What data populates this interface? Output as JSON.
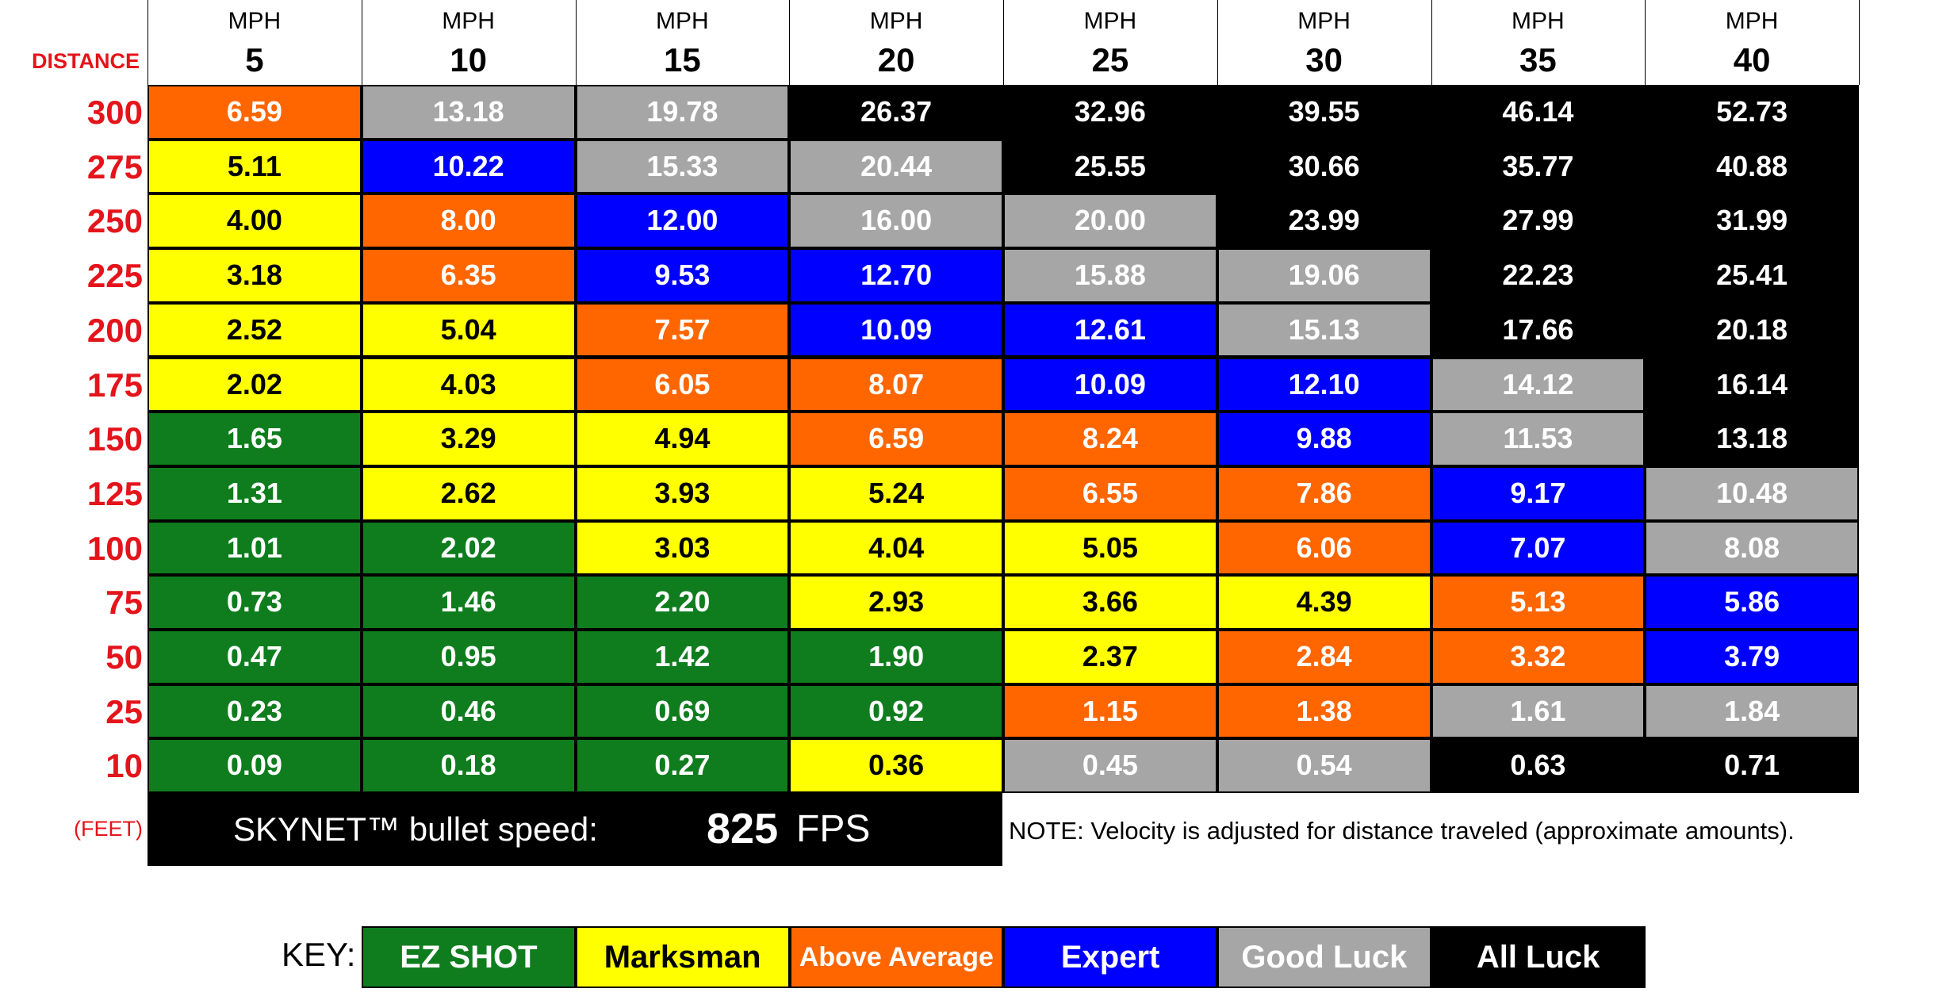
{
  "header": {
    "distance_label": "DISTANCE",
    "columns": [
      {
        "unit": "MPH",
        "value": "5"
      },
      {
        "unit": "MPH",
        "value": "10"
      },
      {
        "unit": "MPH",
        "value": "15"
      },
      {
        "unit": "MPH",
        "value": "20"
      },
      {
        "unit": "MPH",
        "value": "25"
      },
      {
        "unit": "MPH",
        "value": "30"
      },
      {
        "unit": "MPH",
        "value": "35"
      },
      {
        "unit": "MPH",
        "value": "40"
      }
    ]
  },
  "colors": {
    "green": "#0f7d1e",
    "yellow": "#ffff00",
    "orange": "#ff6600",
    "blue": "#0000ff",
    "gray": "#a6a6a6",
    "black": "#000000",
    "label_red": "#e4141b"
  },
  "rows": [
    {
      "distance": "300",
      "cells": [
        {
          "v": "6.59",
          "c": "orange"
        },
        {
          "v": "13.18",
          "c": "gray"
        },
        {
          "v": "19.78",
          "c": "gray"
        },
        {
          "v": "26.37",
          "c": "black"
        },
        {
          "v": "32.96",
          "c": "black"
        },
        {
          "v": "39.55",
          "c": "black"
        },
        {
          "v": "46.14",
          "c": "black"
        },
        {
          "v": "52.73",
          "c": "black"
        }
      ]
    },
    {
      "distance": "275",
      "cells": [
        {
          "v": "5.11",
          "c": "yellow"
        },
        {
          "v": "10.22",
          "c": "blue"
        },
        {
          "v": "15.33",
          "c": "gray"
        },
        {
          "v": "20.44",
          "c": "gray"
        },
        {
          "v": "25.55",
          "c": "black"
        },
        {
          "v": "30.66",
          "c": "black"
        },
        {
          "v": "35.77",
          "c": "black"
        },
        {
          "v": "40.88",
          "c": "black"
        }
      ]
    },
    {
      "distance": "250",
      "cells": [
        {
          "v": "4.00",
          "c": "yellow"
        },
        {
          "v": "8.00",
          "c": "orange"
        },
        {
          "v": "12.00",
          "c": "blue"
        },
        {
          "v": "16.00",
          "c": "gray"
        },
        {
          "v": "20.00",
          "c": "gray"
        },
        {
          "v": "23.99",
          "c": "black"
        },
        {
          "v": "27.99",
          "c": "black"
        },
        {
          "v": "31.99",
          "c": "black"
        }
      ]
    },
    {
      "distance": "225",
      "cells": [
        {
          "v": "3.18",
          "c": "yellow"
        },
        {
          "v": "6.35",
          "c": "orange"
        },
        {
          "v": "9.53",
          "c": "blue"
        },
        {
          "v": "12.70",
          "c": "blue"
        },
        {
          "v": "15.88",
          "c": "gray"
        },
        {
          "v": "19.06",
          "c": "gray"
        },
        {
          "v": "22.23",
          "c": "black"
        },
        {
          "v": "25.41",
          "c": "black"
        }
      ]
    },
    {
      "distance": "200",
      "cells": [
        {
          "v": "2.52",
          "c": "yellow"
        },
        {
          "v": "5.04",
          "c": "yellow"
        },
        {
          "v": "7.57",
          "c": "orange"
        },
        {
          "v": "10.09",
          "c": "blue"
        },
        {
          "v": "12.61",
          "c": "blue"
        },
        {
          "v": "15.13",
          "c": "gray"
        },
        {
          "v": "17.66",
          "c": "black"
        },
        {
          "v": "20.18",
          "c": "black"
        }
      ]
    },
    {
      "distance": "175",
      "cells": [
        {
          "v": "2.02",
          "c": "yellow"
        },
        {
          "v": "4.03",
          "c": "yellow"
        },
        {
          "v": "6.05",
          "c": "orange"
        },
        {
          "v": "8.07",
          "c": "orange"
        },
        {
          "v": "10.09",
          "c": "blue"
        },
        {
          "v": "12.10",
          "c": "blue"
        },
        {
          "v": "14.12",
          "c": "gray"
        },
        {
          "v": "16.14",
          "c": "black"
        }
      ]
    },
    {
      "distance": "150",
      "cells": [
        {
          "v": "1.65",
          "c": "green"
        },
        {
          "v": "3.29",
          "c": "yellow"
        },
        {
          "v": "4.94",
          "c": "yellow"
        },
        {
          "v": "6.59",
          "c": "orange"
        },
        {
          "v": "8.24",
          "c": "orange"
        },
        {
          "v": "9.88",
          "c": "blue"
        },
        {
          "v": "11.53",
          "c": "gray"
        },
        {
          "v": "13.18",
          "c": "black"
        }
      ]
    },
    {
      "distance": "125",
      "cells": [
        {
          "v": "1.31",
          "c": "green"
        },
        {
          "v": "2.62",
          "c": "yellow"
        },
        {
          "v": "3.93",
          "c": "yellow"
        },
        {
          "v": "5.24",
          "c": "yellow"
        },
        {
          "v": "6.55",
          "c": "orange"
        },
        {
          "v": "7.86",
          "c": "orange"
        },
        {
          "v": "9.17",
          "c": "blue"
        },
        {
          "v": "10.48",
          "c": "gray"
        }
      ]
    },
    {
      "distance": "100",
      "cells": [
        {
          "v": "1.01",
          "c": "green"
        },
        {
          "v": "2.02",
          "c": "green"
        },
        {
          "v": "3.03",
          "c": "yellow"
        },
        {
          "v": "4.04",
          "c": "yellow"
        },
        {
          "v": "5.05",
          "c": "yellow"
        },
        {
          "v": "6.06",
          "c": "orange"
        },
        {
          "v": "7.07",
          "c": "blue"
        },
        {
          "v": "8.08",
          "c": "gray"
        }
      ]
    },
    {
      "distance": "75",
      "cells": [
        {
          "v": "0.73",
          "c": "green"
        },
        {
          "v": "1.46",
          "c": "green"
        },
        {
          "v": "2.20",
          "c": "green"
        },
        {
          "v": "2.93",
          "c": "yellow"
        },
        {
          "v": "3.66",
          "c": "yellow"
        },
        {
          "v": "4.39",
          "c": "yellow"
        },
        {
          "v": "5.13",
          "c": "orange"
        },
        {
          "v": "5.86",
          "c": "blue"
        }
      ]
    },
    {
      "distance": "50",
      "cells": [
        {
          "v": "0.47",
          "c": "green"
        },
        {
          "v": "0.95",
          "c": "green"
        },
        {
          "v": "1.42",
          "c": "green"
        },
        {
          "v": "1.90",
          "c": "green"
        },
        {
          "v": "2.37",
          "c": "yellow"
        },
        {
          "v": "2.84",
          "c": "orange"
        },
        {
          "v": "3.32",
          "c": "orange"
        },
        {
          "v": "3.79",
          "c": "blue"
        }
      ]
    },
    {
      "distance": "25",
      "cells": [
        {
          "v": "0.23",
          "c": "green"
        },
        {
          "v": "0.46",
          "c": "green"
        },
        {
          "v": "0.69",
          "c": "green"
        },
        {
          "v": "0.92",
          "c": "green"
        },
        {
          "v": "1.15",
          "c": "orange"
        },
        {
          "v": "1.38",
          "c": "orange"
        },
        {
          "v": "1.61",
          "c": "gray"
        },
        {
          "v": "1.84",
          "c": "gray"
        }
      ]
    },
    {
      "distance": "10",
      "cells": [
        {
          "v": "0.09",
          "c": "green"
        },
        {
          "v": "0.18",
          "c": "green"
        },
        {
          "v": "0.27",
          "c": "green"
        },
        {
          "v": "0.36",
          "c": "yellow"
        },
        {
          "v": "0.45",
          "c": "gray"
        },
        {
          "v": "0.54",
          "c": "gray"
        },
        {
          "v": "0.63",
          "c": "black"
        },
        {
          "v": "0.71",
          "c": "black"
        }
      ]
    }
  ],
  "footer": {
    "feet_label": "(FEET)",
    "speed_label": "SKYNET™ bullet speed:",
    "speed_value": "825",
    "speed_unit": "FPS",
    "note": "NOTE: Velocity is adjusted for distance traveled (approximate amounts)."
  },
  "key": {
    "label": "KEY:",
    "items": [
      {
        "label": "EZ SHOT",
        "c": "green"
      },
      {
        "label": "Marksman",
        "c": "yellow"
      },
      {
        "label": "Above Average",
        "c": "orange"
      },
      {
        "label": "Expert",
        "c": "blue"
      },
      {
        "label": "Good Luck",
        "c": "gray"
      },
      {
        "label": "All Luck",
        "c": "black"
      }
    ]
  }
}
